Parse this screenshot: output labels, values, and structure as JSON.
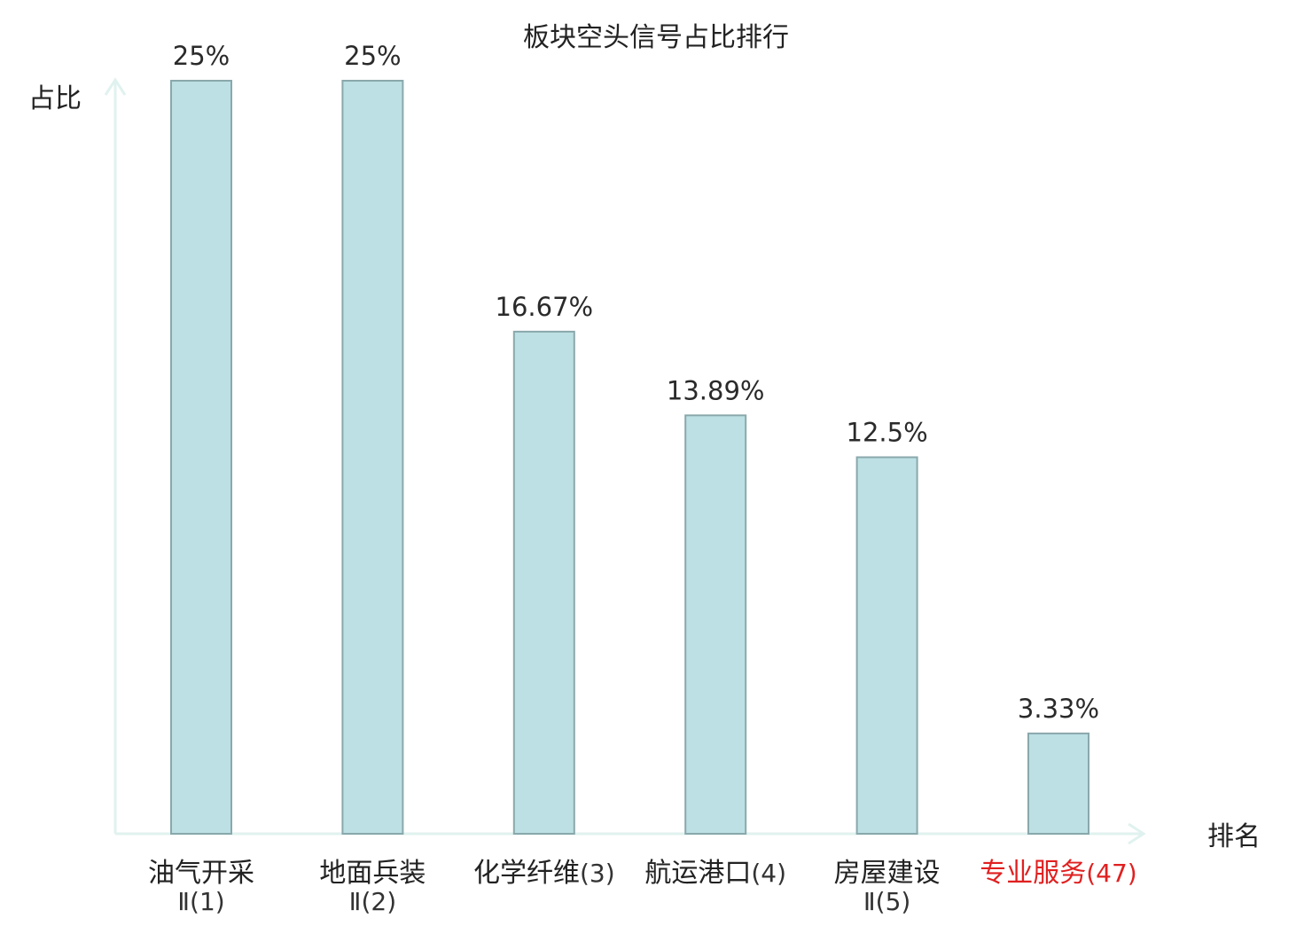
{
  "chart_data": {
    "type": "bar",
    "title": "板块空头信号占比排行",
    "ylabel": "占比",
    "xlabel": "排名",
    "ylim": [
      0,
      25
    ],
    "grid": false,
    "categories": [
      {
        "name": "油气开采",
        "sub": "Ⅱ",
        "rank": "(1)",
        "highlight": false
      },
      {
        "name": "地面兵装",
        "sub": "Ⅱ",
        "rank": "(2)",
        "highlight": false
      },
      {
        "name": "化学纤维",
        "sub": "",
        "rank": "(3)",
        "highlight": false
      },
      {
        "name": "航运港口",
        "sub": "",
        "rank": "(4)",
        "highlight": false
      },
      {
        "name": "房屋建设",
        "sub": "Ⅱ",
        "rank": "(5)",
        "highlight": false
      },
      {
        "name": "专业服务",
        "sub": "",
        "rank": "(47)",
        "highlight": true
      }
    ],
    "values": [
      25,
      25,
      16.67,
      13.89,
      12.5,
      3.33
    ],
    "value_labels": [
      "25%",
      "25%",
      "16.67%",
      "13.89%",
      "12.5%",
      "3.33%"
    ],
    "colors": {
      "bar_fill": "#bce0e3",
      "bar_stroke": "#8aa8ac",
      "axis": "#e0f2ef",
      "text": "#222222",
      "rank_text": "#333333",
      "highlight": "#e02020"
    }
  }
}
